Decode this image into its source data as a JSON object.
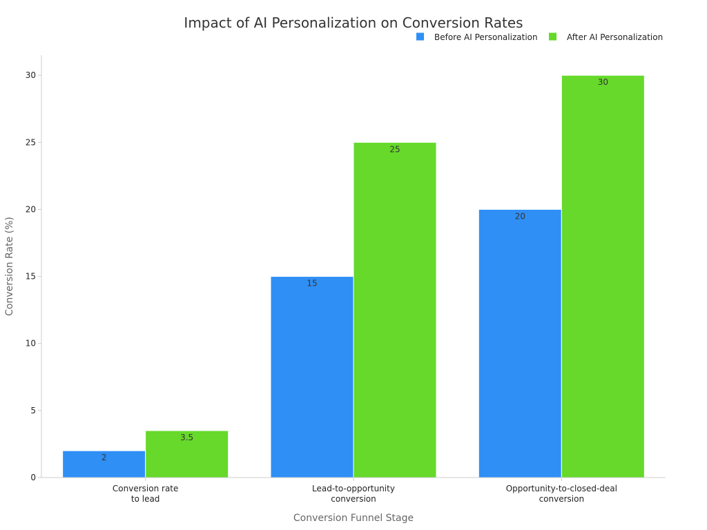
{
  "chart_data": {
    "type": "bar",
    "title": "Impact of AI Personalization on Conversion Rates",
    "xlabel": "Conversion Funnel Stage",
    "ylabel": "Conversion Rate (%)",
    "ylim": [
      0,
      31.5
    ],
    "yticks": [
      0,
      5,
      10,
      15,
      20,
      25,
      30
    ],
    "grid": false,
    "legend_position": "top-right",
    "categories": [
      [
        "Conversion rate",
        "to lead"
      ],
      [
        "Lead-to-opportunity",
        "conversion"
      ],
      [
        "Opportunity-to-closed-deal",
        "conversion"
      ]
    ],
    "series": [
      {
        "name": "Before AI Personalization",
        "color": "#2f8ff5",
        "values": [
          2,
          15,
          20
        ],
        "labels": [
          "2",
          "15",
          "20"
        ]
      },
      {
        "name": "After AI Personalization",
        "color": "#66d92a",
        "values": [
          3.5,
          25,
          30
        ],
        "labels": [
          "3.5",
          "25",
          "30"
        ]
      }
    ]
  }
}
